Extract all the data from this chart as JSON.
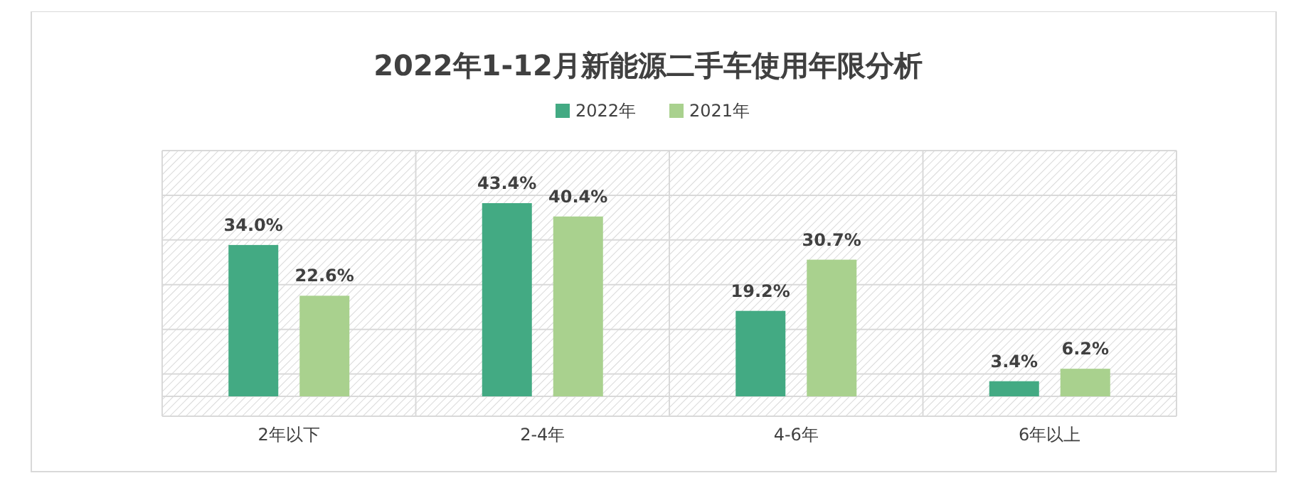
{
  "chart_data": {
    "type": "bar",
    "title": "2022年1-12月新能源二手车使用年限分析",
    "categories": [
      "2年以下",
      "2-4年",
      "4-6年",
      "6年以上"
    ],
    "series": [
      {
        "name": "2022年",
        "color": "#43aa83",
        "values": [
          34.0,
          43.4,
          19.2,
          3.4
        ],
        "value_labels": [
          "34.0%",
          "43.4%",
          "19.2%",
          "3.4%"
        ]
      },
      {
        "name": "2021年",
        "color": "#a9d18e",
        "values": [
          22.6,
          40.4,
          30.7,
          6.2
        ],
        "value_labels": [
          "22.6%",
          "40.4%",
          "30.7%",
          "6.2%"
        ]
      }
    ],
    "legend": "top",
    "grid": true,
    "tick_labels": "x"
  }
}
